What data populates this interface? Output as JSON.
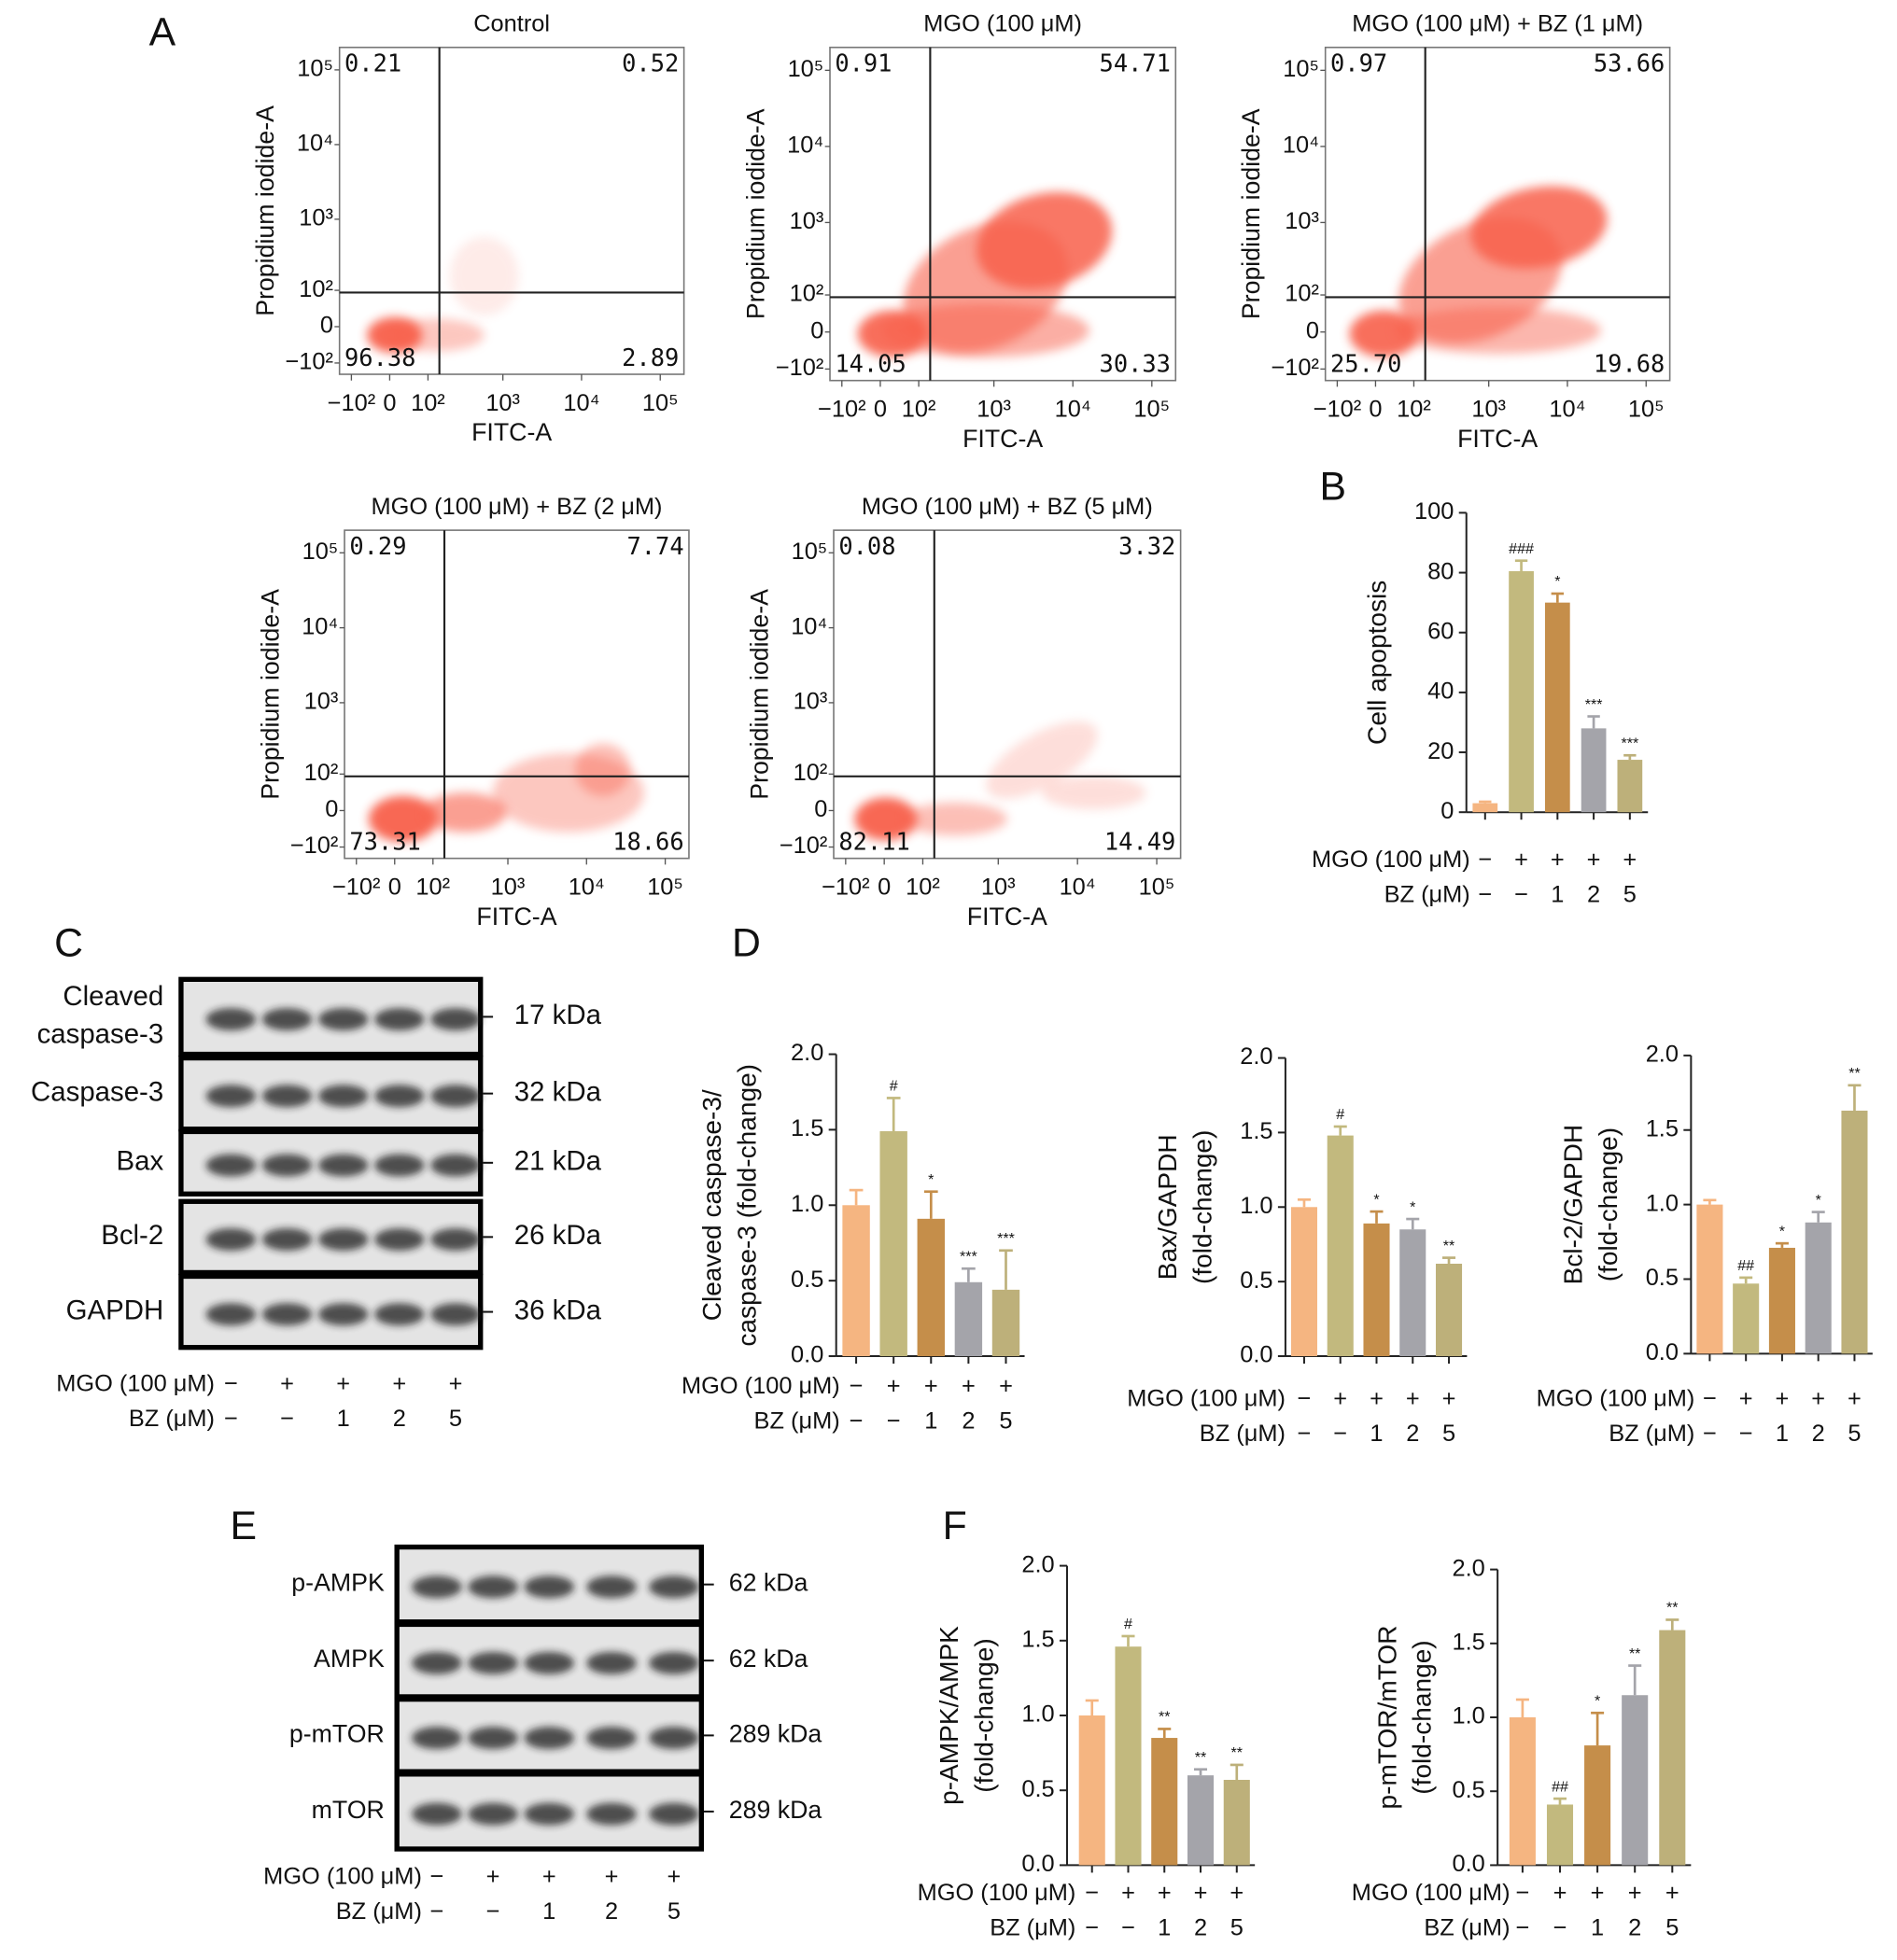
{
  "chart_data": [
    {
      "type": "flow",
      "panel_label": "A",
      "title": "Control",
      "xlabel": "FITC-A",
      "ylabel": "Propidium iodide-A",
      "scale": "biexponential",
      "xlim": [
        -150,
        200000
      ],
      "ylim": [
        -150,
        200000
      ],
      "xticks": [
        {
          "value": -100,
          "label": "−10²"
        },
        0,
        {
          "value": 100,
          "label": "10²"
        },
        {
          "value": 1000,
          "label": "10³"
        },
        {
          "value": 10000,
          "label": "10⁴"
        },
        {
          "value": 100000,
          "label": "10⁵"
        }
      ],
      "yticks": [
        {
          "value": -100,
          "label": "−10²"
        },
        0,
        {
          "value": 100,
          "label": "10²"
        },
        {
          "value": 1000,
          "label": "10³"
        },
        {
          "value": 10000,
          "label": "10⁴"
        },
        {
          "value": 100000,
          "label": "10⁵"
        }
      ],
      "color": "#f8604c",
      "values": [
        0.21,
        0.52,
        96.38,
        2.89
      ]
    },
    {
      "type": "flow",
      "title": "MGO (100 μM)",
      "xlabel": "FITC-A",
      "ylabel": "Propidium iodide-A",
      "scale": "biexponential",
      "xlim": [
        -150,
        200000
      ],
      "ylim": [
        -150,
        200000
      ],
      "xticks": [
        {
          "value": -100,
          "label": "−10²"
        },
        0,
        {
          "value": 100,
          "label": "10²"
        },
        {
          "value": 1000,
          "label": "10³"
        },
        {
          "value": 10000,
          "label": "10⁴"
        },
        {
          "value": 100000,
          "label": "10⁵"
        }
      ],
      "yticks": [
        {
          "value": -100,
          "label": "−10²"
        },
        0,
        {
          "value": 100,
          "label": "10²"
        },
        {
          "value": 1000,
          "label": "10³"
        },
        {
          "value": 10000,
          "label": "10⁴"
        },
        {
          "value": 100000,
          "label": "10⁵"
        }
      ],
      "color": "#f8604c",
      "values": [
        0.91,
        54.71,
        14.05,
        30.33
      ]
    },
    {
      "type": "flow",
      "title": "MGO (100 μM) + BZ (1 μM)",
      "xlabel": "FITC-A",
      "ylabel": "Propidium iodide-A",
      "scale": "biexponential",
      "xlim": [
        -150,
        200000
      ],
      "ylim": [
        -150,
        200000
      ],
      "xticks": [
        {
          "value": -100,
          "label": "−10²"
        },
        0,
        {
          "value": 100,
          "label": "10²"
        },
        {
          "value": 1000,
          "label": "10³"
        },
        {
          "value": 10000,
          "label": "10⁴"
        },
        {
          "value": 100000,
          "label": "10⁵"
        }
      ],
      "yticks": [
        {
          "value": -100,
          "label": "−10²"
        },
        0,
        {
          "value": 100,
          "label": "10²"
        },
        {
          "value": 1000,
          "label": "10³"
        },
        {
          "value": 10000,
          "label": "10⁴"
        },
        {
          "value": 100000,
          "label": "10⁵"
        }
      ],
      "color": "#f8604c",
      "values": [
        0.97,
        53.66,
        25.7,
        19.68
      ],
      "value_labels": [
        "0.97",
        "53.66",
        "25.70",
        "19.68"
      ]
    },
    {
      "type": "flow",
      "title": "MGO (100 μM) + BZ (2 μM)",
      "xlabel": "FITC-A",
      "ylabel": "Propidium iodide-A",
      "scale": "biexponential",
      "xlim": [
        -150,
        200000
      ],
      "ylim": [
        -150,
        200000
      ],
      "xticks": [
        {
          "value": -100,
          "label": "−10²"
        },
        0,
        {
          "value": 100,
          "label": "10²"
        },
        {
          "value": 1000,
          "label": "10³"
        },
        {
          "value": 10000,
          "label": "10⁴"
        },
        {
          "value": 100000,
          "label": "10⁵"
        }
      ],
      "yticks": [
        {
          "value": -100,
          "label": "−10²"
        },
        0,
        {
          "value": 100,
          "label": "10²"
        },
        {
          "value": 1000,
          "label": "10³"
        },
        {
          "value": 10000,
          "label": "10⁴"
        },
        {
          "value": 100000,
          "label": "10⁵"
        }
      ],
      "color": "#f8604c",
      "values": [
        0.29,
        7.74,
        73.31,
        18.66
      ]
    },
    {
      "type": "flow",
      "title": "MGO (100 μM) + BZ (5 μM)",
      "xlabel": "FITC-A",
      "ylabel": "Propidium iodide-A",
      "scale": "biexponential",
      "xlim": [
        -150,
        200000
      ],
      "ylim": [
        -150,
        200000
      ],
      "xticks": [
        {
          "value": -100,
          "label": "−10²"
        },
        0,
        {
          "value": 100,
          "label": "10²"
        },
        {
          "value": 1000,
          "label": "10³"
        },
        {
          "value": 10000,
          "label": "10⁴"
        },
        {
          "value": 100000,
          "label": "10⁵"
        }
      ],
      "yticks": [
        {
          "value": -100,
          "label": "−10²"
        },
        0,
        {
          "value": 100,
          "label": "10²"
        },
        {
          "value": 1000,
          "label": "10³"
        },
        {
          "value": 10000,
          "label": "10⁴"
        },
        {
          "value": 100000,
          "label": "10⁵"
        }
      ],
      "color": "#f8604c",
      "values": [
        0.08,
        3.32,
        82.11,
        14.49
      ]
    },
    {
      "type": "bar",
      "panel_label": "B",
      "ylabel": [
        "Cell apoptosis"
      ],
      "ylim": [
        0,
        100
      ],
      "yticks": [
        0,
        20,
        40,
        60,
        80,
        100
      ],
      "values": [
        3,
        80.5,
        70,
        28,
        17.5
      ],
      "errors": [
        0.5,
        3.5,
        3,
        4,
        1.5
      ],
      "annotations": [
        null,
        "###",
        "*",
        "***",
        "***"
      ],
      "colors": [
        "#f5b581",
        "#c2b97e",
        "#c58e4a",
        "#a4a4aa",
        "#bdb07a"
      ],
      "conditions": [
        {
          "label": "MGO (100 μM)",
          "values": [
            "−",
            "+",
            "+",
            "+",
            "+"
          ]
        },
        {
          "label": "BZ (μM)",
          "values": [
            "−",
            "−",
            "1",
            "2",
            "5"
          ]
        }
      ]
    },
    {
      "type": "blot",
      "panel_label": "C",
      "rows": [
        {
          "lines": [
            "Cleaved",
            "caspase-3"
          ],
          "kda": "17 kDa"
        },
        {
          "lines": [
            "Caspase-3"
          ],
          "kda": "32 kDa"
        },
        {
          "lines": [
            "Bax"
          ],
          "kda": "21 kDa"
        },
        {
          "lines": [
            "Bcl-2"
          ],
          "kda": "26 kDa"
        },
        {
          "lines": [
            "GAPDH"
          ],
          "kda": "36 kDa"
        }
      ],
      "conditions": [
        {
          "label": "MGO (100 μM)",
          "values": [
            "−",
            "+",
            "+",
            "+",
            "+"
          ]
        },
        {
          "label": "BZ (μM)",
          "values": [
            "−",
            "−",
            "1",
            "2",
            "5"
          ]
        }
      ]
    },
    {
      "type": "bar",
      "panel_label": "D",
      "ylabel": [
        "Cleaved caspase-3/",
        "caspase-3 (fold-change)"
      ],
      "ylim": [
        0,
        2
      ],
      "yticks": [
        {
          "value": 0,
          "label": "0.0"
        },
        0.5,
        {
          "value": 1,
          "label": "1.0"
        },
        1.5,
        {
          "value": 2,
          "label": "2.0"
        }
      ],
      "values": [
        1.0,
        1.49,
        0.91,
        0.49,
        0.44
      ],
      "errors": [
        0.1,
        0.22,
        0.18,
        0.09,
        0.26
      ],
      "annotations": [
        null,
        "#",
        "*",
        "***",
        "***"
      ],
      "colors": [
        "#f5b581",
        "#c2b97e",
        "#c58e4a",
        "#a4a4aa",
        "#bdb07a"
      ],
      "conditions": [
        {
          "label": "MGO (100 μM)",
          "values": [
            "−",
            "+",
            "+",
            "+",
            "+"
          ]
        },
        {
          "label": "BZ (μM)",
          "values": [
            "−",
            "−",
            "1",
            "2",
            "5"
          ]
        }
      ]
    },
    {
      "type": "bar",
      "ylabel": [
        "Bax/GAPDH",
        "(fold-change)"
      ],
      "ylim": [
        0,
        2
      ],
      "yticks": [
        {
          "value": 0,
          "label": "0.0"
        },
        0.5,
        {
          "value": 1,
          "label": "1.0"
        },
        1.5,
        {
          "value": 2,
          "label": "2.0"
        }
      ],
      "values": [
        1.0,
        1.48,
        0.89,
        0.85,
        0.62
      ],
      "errors": [
        0.05,
        0.06,
        0.08,
        0.07,
        0.04
      ],
      "annotations": [
        null,
        "#",
        "*",
        "*",
        "**"
      ],
      "colors": [
        "#f5b581",
        "#c2b97e",
        "#c58e4a",
        "#a4a4aa",
        "#bdb07a"
      ],
      "conditions": [
        {
          "label": "MGO (100 μM)",
          "values": [
            "−",
            "+",
            "+",
            "+",
            "+"
          ]
        },
        {
          "label": "BZ (μM)",
          "values": [
            "−",
            "−",
            "1",
            "2",
            "5"
          ]
        }
      ]
    },
    {
      "type": "bar",
      "ylabel": [
        "Bcl-2/GAPDH",
        "(fold-change)"
      ],
      "ylim": [
        0,
        2
      ],
      "yticks": [
        {
          "value": 0,
          "label": "0.0"
        },
        0.5,
        {
          "value": 1,
          "label": "1.0"
        },
        1.5,
        {
          "value": 2,
          "label": "2.0"
        }
      ],
      "values": [
        1.0,
        0.47,
        0.71,
        0.88,
        1.63
      ],
      "errors": [
        0.03,
        0.04,
        0.03,
        0.07,
        0.17
      ],
      "annotations": [
        null,
        "##",
        "*",
        "*",
        "**"
      ],
      "colors": [
        "#f5b581",
        "#c2b97e",
        "#c58e4a",
        "#a4a4aa",
        "#bdb07a"
      ],
      "conditions": [
        {
          "label": "MGO (100 μM)",
          "values": [
            "−",
            "+",
            "+",
            "+",
            "+"
          ]
        },
        {
          "label": "BZ (μM)",
          "values": [
            "−",
            "−",
            "1",
            "2",
            "5"
          ]
        }
      ]
    },
    {
      "type": "blot",
      "panel_label": "E",
      "rows": [
        {
          "lines": [
            "p-AMPK"
          ],
          "kda": "62 kDa"
        },
        {
          "lines": [
            "AMPK"
          ],
          "kda": "62 kDa"
        },
        {
          "lines": [
            "p-mTOR"
          ],
          "kda": "289 kDa"
        },
        {
          "lines": [
            "mTOR"
          ],
          "kda": "289 kDa"
        }
      ],
      "conditions": [
        {
          "label": "MGO (100 μM)",
          "values": [
            "−",
            "+",
            "+",
            "+",
            "+"
          ]
        },
        {
          "label": "BZ (μM)",
          "values": [
            "−",
            "−",
            "1",
            "2",
            "5"
          ]
        }
      ]
    },
    {
      "type": "bar",
      "panel_label": "F",
      "ylabel": [
        "p-AMPK/AMPK",
        "(fold-change)"
      ],
      "ylim": [
        0,
        2
      ],
      "yticks": [
        {
          "value": 0,
          "label": "0.0"
        },
        0.5,
        {
          "value": 1,
          "label": "1.0"
        },
        1.5,
        {
          "value": 2,
          "label": "2.0"
        }
      ],
      "values": [
        1.0,
        1.46,
        0.85,
        0.6,
        0.57
      ],
      "errors": [
        0.1,
        0.07,
        0.06,
        0.04,
        0.1
      ],
      "annotations": [
        null,
        "#",
        "**",
        "**",
        "**"
      ],
      "colors": [
        "#f5b581",
        "#c2b97e",
        "#c58e4a",
        "#a4a4aa",
        "#bdb07a"
      ],
      "conditions": [
        {
          "label": "MGO (100 μM)",
          "values": [
            "−",
            "+",
            "+",
            "+",
            "+"
          ]
        },
        {
          "label": "BZ (μM)",
          "values": [
            "−",
            "−",
            "1",
            "2",
            "5"
          ]
        }
      ]
    },
    {
      "type": "bar",
      "ylabel": [
        "p-mTOR/mTOR",
        "(fold-change)"
      ],
      "ylim": [
        0,
        2
      ],
      "yticks": [
        {
          "value": 0,
          "label": "0.0"
        },
        0.5,
        {
          "value": 1,
          "label": "1.0"
        },
        1.5,
        {
          "value": 2,
          "label": "2.0"
        }
      ],
      "values": [
        1.0,
        0.41,
        0.81,
        1.15,
        1.59
      ],
      "errors": [
        0.12,
        0.04,
        0.22,
        0.2,
        0.07
      ],
      "annotations": [
        null,
        "##",
        "*",
        "**",
        "**"
      ],
      "colors": [
        "#f5b581",
        "#c2b97e",
        "#c58e4a",
        "#a4a4aa",
        "#bdb07a"
      ],
      "conditions": [
        {
          "label": "MGO (100 μM)",
          "values": [
            "−",
            "+",
            "+",
            "+",
            "+"
          ]
        },
        {
          "label": "BZ (μM)",
          "values": [
            "−",
            "−",
            "1",
            "2",
            "5"
          ]
        }
      ]
    }
  ]
}
